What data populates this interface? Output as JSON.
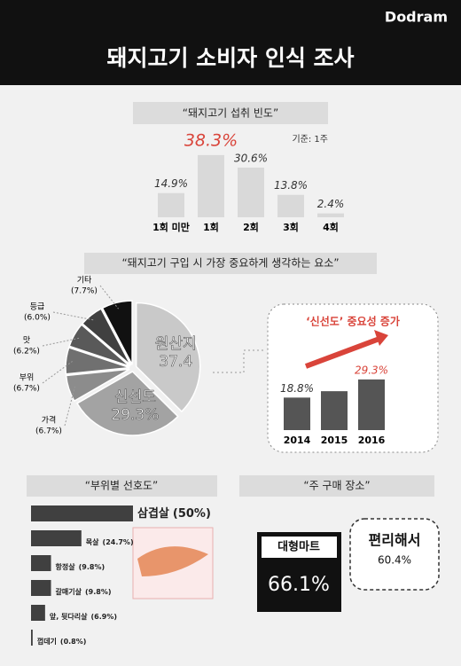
{
  "header": {
    "brand": "Dodram",
    "title": "돼지고기 소비자 인식 조사"
  },
  "chart_data": [
    {
      "type": "bar",
      "title": "“돼지고기 섭취 빈도”",
      "note": "기준: 1주",
      "categories": [
        "1회 미만",
        "1회",
        "2회",
        "3회",
        "4회"
      ],
      "values": [
        14.9,
        38.3,
        30.6,
        13.8,
        2.4
      ],
      "value_labels": [
        "14.9%",
        "38.3%",
        "30.6%",
        "13.8%",
        "2.4%"
      ],
      "color": "#d9d9d9",
      "highlight_color": "#d9443a"
    },
    {
      "type": "pie",
      "title": "“돼지고기 구입 시 가장 중요하게 생각하는 요소”",
      "categories": [
        "원산지",
        "신선도",
        "가격",
        "부위",
        "맛",
        "등급",
        "기타"
      ],
      "values": [
        37.4,
        29.3,
        6.7,
        6.7,
        6.2,
        6.0,
        7.7
      ],
      "value_labels": [
        "37.4",
        "29.3%",
        "(6.7%)",
        "(6.7%)",
        "(6.2%)",
        "(6.0%)",
        "(7.7%)"
      ],
      "colors": [
        "#c9c9c9",
        "#a3a3a3",
        "#8c8c8c",
        "#707070",
        "#595959",
        "#404040",
        "#111111"
      ]
    },
    {
      "type": "bar",
      "title": "‘신선도’ 중요성 증가",
      "categories": [
        "2014",
        "2015",
        "2016"
      ],
      "values": [
        18.8,
        22.5,
        29.3
      ],
      "value_labels": [
        "18.8%",
        null,
        "29.3%"
      ],
      "color": "#555555",
      "highlight_color": "#d9443a"
    },
    {
      "type": "hbar",
      "title": "“부위별 선호도”",
      "categories": [
        "삼겹살",
        "목살",
        "항정살",
        "갈매기살",
        "앞, 뒷다리살",
        "껍데기"
      ],
      "values": [
        50,
        24.7,
        9.8,
        9.8,
        6.9,
        0.8
      ],
      "value_labels": [
        "(50%)",
        "(24.7%)",
        "(9.8%)",
        "(9.8%)",
        "(6.9%)",
        "(0.8%)"
      ],
      "color": "#404040"
    },
    {
      "type": "callout",
      "title": "“주 구매 장소”",
      "categories": [
        "대형마트",
        "편리해서"
      ],
      "values": [
        66.1,
        60.4
      ],
      "value_labels": [
        "66.1%",
        "60.4%"
      ]
    }
  ]
}
